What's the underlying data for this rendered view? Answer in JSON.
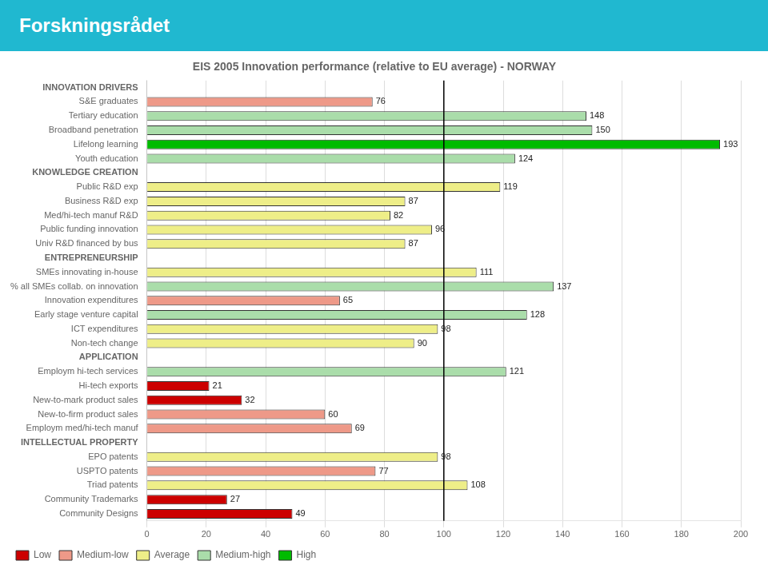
{
  "chart_data": {
    "type": "bar",
    "orientation": "horizontal",
    "title": "EIS 2005 Innovation performance (relative to EU average) - NORWAY",
    "categories": [
      "INNOVATION DRIVERS",
      "S&E graduates",
      "Tertiary education",
      "Broadband penetration",
      "Lifelong learning",
      "Youth education",
      "KNOWLEDGE CREATION",
      "Public R&D exp",
      "Business R&D exp",
      "Med/hi-tech manuf R&D",
      "Public funding innovation",
      "Univ R&D financed by bus",
      "ENTREPRENEURSHIP",
      "SMEs innovating in-house",
      "% all SMEs collab. on innovation",
      "Innovation expenditures",
      "Early stage venture capital",
      "ICT expenditures",
      "Non-tech change",
      "APPLICATION",
      "Employm hi-tech services",
      "Hi-tech exports",
      "New-to-mark product sales",
      "New-to-firm product sales",
      "Employm med/hi-tech manuf",
      "INTELLECTUAL PROPERTY",
      "EPO patents",
      "USPTO patents",
      "Triad patents",
      "Community Trademarks",
      "Community Designs"
    ],
    "series": [
      {
        "name": "Low",
        "color": "#cc0000",
        "values": [
          null,
          null,
          null,
          null,
          null,
          null,
          null,
          null,
          null,
          null,
          null,
          null,
          null,
          null,
          null,
          null,
          null,
          null,
          null,
          null,
          null,
          21,
          32,
          null,
          null,
          null,
          null,
          null,
          null,
          27,
          49
        ]
      },
      {
        "name": "Medium-low",
        "color": "#ee9988",
        "values": [
          null,
          76,
          null,
          null,
          null,
          null,
          null,
          null,
          null,
          null,
          null,
          null,
          null,
          null,
          null,
          65,
          null,
          null,
          null,
          null,
          null,
          null,
          null,
          60,
          69,
          null,
          null,
          77,
          null,
          null,
          null
        ]
      },
      {
        "name": "Average",
        "color": "#eeee88",
        "values": [
          null,
          null,
          null,
          null,
          null,
          null,
          null,
          119,
          87,
          82,
          96,
          87,
          null,
          111,
          null,
          null,
          null,
          98,
          90,
          null,
          null,
          null,
          null,
          null,
          null,
          null,
          98,
          null,
          108,
          null,
          null
        ]
      },
      {
        "name": "Medium-high",
        "color": "#aaddaa",
        "values": [
          null,
          null,
          148,
          150,
          null,
          124,
          null,
          null,
          null,
          null,
          null,
          null,
          null,
          null,
          137,
          null,
          128,
          null,
          null,
          null,
          121,
          null,
          null,
          null,
          null,
          null,
          null,
          null,
          null,
          null,
          null
        ]
      },
      {
        "name": "High",
        "color": "#00bb00",
        "values": [
          null,
          null,
          null,
          null,
          193,
          null,
          null,
          null,
          null,
          null,
          null,
          null,
          null,
          null,
          null,
          null,
          null,
          null,
          null,
          null,
          null,
          null,
          null,
          null,
          null,
          null,
          null,
          null,
          null,
          null,
          null
        ]
      }
    ],
    "stacked": true,
    "xlim": [
      0,
      200
    ],
    "xticks": [
      0,
      20,
      40,
      60,
      80,
      100,
      120,
      140,
      160,
      180,
      200
    ],
    "grid": true,
    "legend": "bottom",
    "data_labels": true,
    "annotations": [
      {
        "text": "Forskningsrådet"
      },
      {
        "x": 100
      }
    ]
  }
}
